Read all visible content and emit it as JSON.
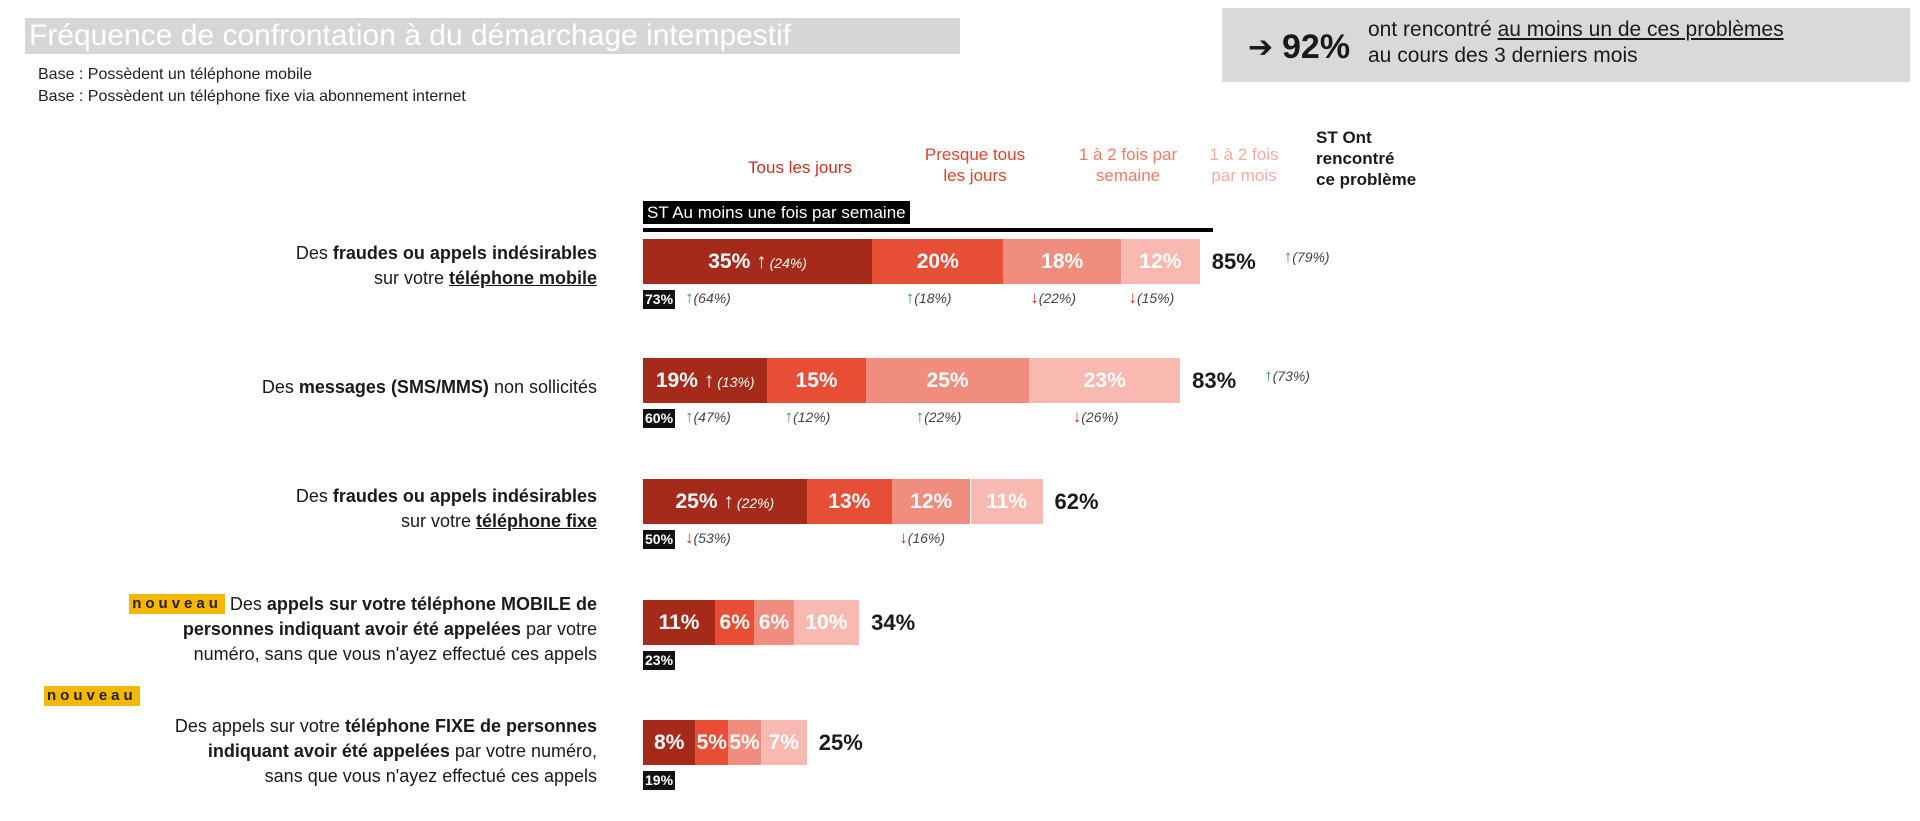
{
  "header": {
    "title": "Fréquence de confrontation à du démarchage intempestif",
    "base_mobile": "Base : Possèdent un téléphone mobile",
    "base_fixe": "Base : Possèdent un téléphone fixe via abonnement internet"
  },
  "kpi": {
    "arrow": "➔",
    "value": "92%",
    "text_line1_plain": "ont rencontré ",
    "text_line1_underlined": "au moins un de ces problèmes",
    "text_line2": "au cours des 3 derniers mois"
  },
  "columns": {
    "tous_les_jours": "Tous les jours",
    "presque_1": "Presque tous",
    "presque_2": "les jours",
    "semaine_1": "1 à 2 fois par",
    "semaine_2": "semaine",
    "mois_1": "1 à 2 fois",
    "mois_2": "par mois",
    "st_1": "ST Ont",
    "st_2": "rencontré",
    "st_3": "ce problème",
    "st_week": "ST Au moins une fois par semaine"
  },
  "colors": {
    "tous_les_jours": "#a52a1a",
    "presque": "#e84d35",
    "semaine": "#f08d7e",
    "mois": "#f7b9b0",
    "up": "#2e9e4a",
    "down": "#d03224",
    "badge": "#f5b800"
  },
  "badge_text": "nouveau",
  "rows": {
    "r0": {
      "label": {
        "a": "Des ",
        "b": "fraudes ou appels indésirables",
        "c": "sur votre ",
        "d": "téléphone mobile"
      },
      "seg_labels": [
        "35%",
        "20%",
        "18%",
        "12%"
      ],
      "seg_prev": [
        "(24%)",
        "",
        "",
        ""
      ],
      "total": "85%",
      "total_prev": "(79%)",
      "st_week": "73%",
      "st_week_prev": "(64%)",
      "prev_below": [
        "(18%)",
        "(22%)",
        "(15%)"
      ]
    },
    "r1": {
      "label": {
        "a": "Des ",
        "b": "messages (SMS/MMS)",
        "c": " non sollicités"
      },
      "seg_labels": [
        "19%",
        "15%",
        "25%",
        "23%"
      ],
      "seg_prev": [
        "(13%)",
        "",
        "",
        ""
      ],
      "total": "83%",
      "total_prev": "(73%)",
      "st_week": "60%",
      "st_week_prev": "(47%)",
      "prev_below": [
        "(12%)",
        "(22%)",
        "(26%)"
      ]
    },
    "r2": {
      "label": {
        "a": "Des ",
        "b": "fraudes ou appels indésirables",
        "c": "sur votre ",
        "d": "téléphone fixe"
      },
      "seg_labels": [
        "25%",
        "13%",
        "12%",
        "11%"
      ],
      "seg_prev": [
        "(22%)",
        "",
        "",
        ""
      ],
      "total": "62%",
      "st_week": "50%",
      "st_week_prev": "(53%)",
      "prev_below": [
        "(16%)"
      ]
    },
    "r3": {
      "label": {
        "l1a": "Des ",
        "l1b": "appels sur votre téléphone MOBILE de",
        "l2a": "personnes indiquant avoir été appelées",
        "l2b": " par votre",
        "l3": "numéro, sans que vous n'ayez effectué ces appels"
      },
      "seg_labels": [
        "11%",
        "6%",
        "6%",
        "10%"
      ],
      "total": "34%",
      "st_week": "23%"
    },
    "r4": {
      "label": {
        "l1a": "Des appels sur votre ",
        "l1b": "téléphone FIXE de personnes",
        "l2a": "indiquant avoir été appelées",
        "l2b": " par votre numéro,",
        "l3": "sans que vous n'ayez effectué ces appels"
      },
      "seg_labels": [
        "8%",
        "5%",
        "5%",
        "7%"
      ],
      "total": "25%",
      "st_week": "19%"
    }
  },
  "chart_data": {
    "type": "bar",
    "stacked": true,
    "orientation": "horizontal",
    "title": "Fréquence de confrontation à du démarchage intempestif",
    "categories": [
      "Des fraudes ou appels indésirables sur votre téléphone mobile",
      "Des messages (SMS/MMS) non sollicités",
      "Des fraudes ou appels indésirables sur votre téléphone fixe",
      "Des appels sur votre téléphone MOBILE de personnes indiquant avoir été appelées par votre numéro, sans que vous n'ayez effectué ces appels",
      "Des appels sur votre téléphone FIXE de personnes indiquant avoir été appelées par votre numéro, sans que vous n'ayez effectué ces appels"
    ],
    "series": [
      {
        "name": "Tous les jours",
        "values": [
          35,
          19,
          25,
          11,
          8
        ]
      },
      {
        "name": "Presque tous les jours",
        "values": [
          20,
          15,
          13,
          6,
          5
        ]
      },
      {
        "name": "1 à 2 fois par semaine",
        "values": [
          18,
          25,
          12,
          6,
          5
        ]
      },
      {
        "name": "1 à 2 fois par mois",
        "values": [
          12,
          23,
          11,
          10,
          7
        ]
      }
    ],
    "st_ont_rencontre": [
      85,
      83,
      62,
      34,
      25
    ],
    "st_au_moins_une_fois_par_semaine": [
      73,
      60,
      50,
      23,
      19
    ],
    "previous_values": {
      "tous_les_jours": [
        24,
        13,
        22,
        null,
        null
      ],
      "presque_tous_les_jours": [
        18,
        12,
        null,
        null,
        null
      ],
      "semaine": [
        22,
        22,
        16,
        null,
        null
      ],
      "mois": [
        15,
        26,
        null,
        null,
        null
      ],
      "st_ont_rencontre": [
        79,
        73,
        null,
        null,
        null
      ],
      "st_semaine": [
        64,
        47,
        53,
        null,
        null
      ]
    },
    "xlim": [
      0,
      100
    ]
  }
}
